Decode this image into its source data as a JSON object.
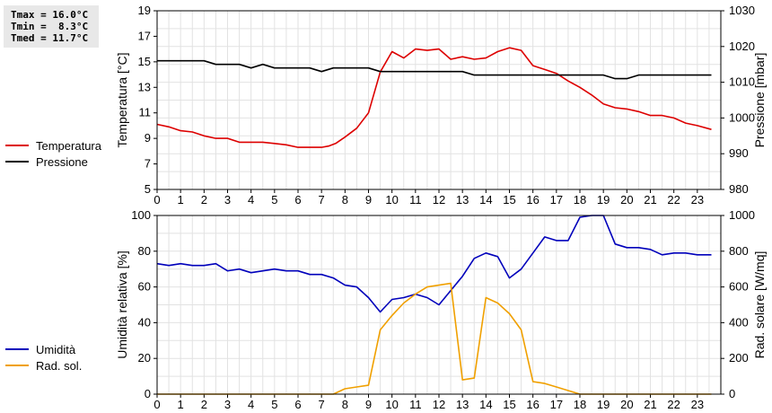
{
  "stats": {
    "tmax": "Tmax = 16.0°C",
    "tmin": "Tmin =  8.3°C",
    "tmed": "Tmed = 11.7°C"
  },
  "legend_top": [
    {
      "label": "Temperatura",
      "color": "#dd0000"
    },
    {
      "label": "Pressione",
      "color": "#000000"
    }
  ],
  "legend_bottom": [
    {
      "label": "Umidità",
      "color": "#0000bb"
    },
    {
      "label": "Rad. sol.",
      "color": "#f0a000"
    }
  ],
  "chart_data": [
    {
      "type": "line",
      "ylabel": "Temperatura [°C]",
      "y2label": "Pressione [mbar]",
      "ylim": [
        5,
        19
      ],
      "yticks": [
        "5",
        "7",
        "9",
        "11",
        "13",
        "15",
        "17",
        "19"
      ],
      "y2lim": [
        980,
        1030
      ],
      "y2ticks": [
        "980",
        "990",
        "1000",
        "1010",
        "1020",
        "1030"
      ],
      "xlim": [
        0,
        24
      ],
      "xticks": [
        "0",
        "1",
        "2",
        "3",
        "4",
        "5",
        "6",
        "7",
        "8",
        "9",
        "10",
        "11",
        "12",
        "13",
        "14",
        "15",
        "16",
        "17",
        "18",
        "19",
        "20",
        "21",
        "22",
        "23"
      ],
      "grid": true,
      "series": [
        {
          "name": "Temperatura",
          "axis": "left",
          "color": "#dd0000",
          "x": [
            0,
            0.5,
            1,
            1.5,
            2,
            2.5,
            3,
            3.5,
            4,
            4.5,
            5,
            5.5,
            6,
            6.5,
            7,
            7.3,
            7.6,
            8,
            8.5,
            9,
            9.5,
            10,
            10.5,
            11,
            11.5,
            12,
            12.5,
            13,
            13.5,
            14,
            14.5,
            15,
            15.5,
            16,
            16.5,
            17,
            17.5,
            18,
            18.5,
            19,
            19.5,
            20,
            20.5,
            21,
            21.5,
            22,
            22.5,
            23,
            23.6
          ],
          "y": [
            10.1,
            9.9,
            9.6,
            9.5,
            9.2,
            9.0,
            9.0,
            8.7,
            8.7,
            8.7,
            8.6,
            8.5,
            8.3,
            8.3,
            8.3,
            8.4,
            8.6,
            9.1,
            9.8,
            11.0,
            14.2,
            15.8,
            15.3,
            16.0,
            15.9,
            16.0,
            15.2,
            15.4,
            15.2,
            15.3,
            15.8,
            16.1,
            15.9,
            14.7,
            14.4,
            14.1,
            13.5,
            13.0,
            12.4,
            11.7,
            11.4,
            11.3,
            11.1,
            10.8,
            10.8,
            10.6,
            10.2,
            10.0,
            9.7
          ]
        },
        {
          "name": "Pressione",
          "axis": "right",
          "color": "#000000",
          "x": [
            0,
            0.5,
            1,
            1.5,
            2,
            2.5,
            3,
            3.5,
            4,
            4.5,
            5,
            5.5,
            6,
            6.5,
            7,
            7.5,
            8,
            8.5,
            9,
            9.5,
            10,
            11,
            12,
            13,
            13.5,
            14,
            15,
            16,
            17,
            18,
            19,
            19.5,
            20,
            20.5,
            21,
            22,
            23,
            23.6
          ],
          "y": [
            1016,
            1016,
            1016,
            1016,
            1016,
            1015,
            1015,
            1015,
            1014,
            1015,
            1014,
            1014,
            1014,
            1014,
            1013,
            1014,
            1014,
            1014,
            1014,
            1013,
            1013,
            1013,
            1013,
            1013,
            1012,
            1012,
            1012,
            1012,
            1012,
            1012,
            1012,
            1011,
            1011,
            1012,
            1012,
            1012,
            1012,
            1012
          ]
        }
      ]
    },
    {
      "type": "line",
      "ylabel": "Umidità relativa [%]",
      "y2label": "Rad. solare [W/mq]",
      "ylim": [
        0,
        100
      ],
      "yticks": [
        "0",
        "20",
        "40",
        "60",
        "80",
        "100"
      ],
      "y2lim": [
        0,
        1000
      ],
      "y2ticks": [
        "0",
        "200",
        "400",
        "600",
        "800",
        "1000"
      ],
      "xlim": [
        0,
        24
      ],
      "xticks": [
        "0",
        "1",
        "2",
        "3",
        "4",
        "5",
        "6",
        "7",
        "8",
        "9",
        "10",
        "11",
        "12",
        "13",
        "14",
        "15",
        "16",
        "17",
        "18",
        "19",
        "20",
        "21",
        "22",
        "23"
      ],
      "grid": true,
      "series": [
        {
          "name": "Umidità",
          "axis": "left",
          "color": "#0000bb",
          "x": [
            0,
            0.5,
            1,
            1.5,
            2,
            2.5,
            3,
            3.5,
            4,
            4.5,
            5,
            5.5,
            6,
            6.5,
            7,
            7.5,
            8,
            8.5,
            9,
            9.5,
            10,
            10.5,
            11,
            11.5,
            12,
            12.5,
            13,
            13.5,
            14,
            14.5,
            15,
            15.5,
            16,
            16.5,
            17,
            17.5,
            18,
            18.5,
            19,
            19.5,
            20,
            20.5,
            21,
            21.5,
            22,
            22.5,
            23,
            23.6
          ],
          "y": [
            73,
            72,
            73,
            72,
            72,
            73,
            69,
            70,
            68,
            69,
            70,
            69,
            69,
            67,
            67,
            65,
            61,
            60,
            54,
            46,
            53,
            54,
            56,
            54,
            50,
            58,
            66,
            76,
            79,
            77,
            65,
            70,
            79,
            88,
            86,
            86,
            99,
            100,
            100,
            84,
            82,
            82,
            81,
            78,
            79,
            79,
            78,
            78
          ]
        },
        {
          "name": "Rad. sol.",
          "axis": "right",
          "color": "#f0a000",
          "x": [
            0,
            1,
            2,
            3,
            4,
            5,
            6,
            7,
            7.5,
            8,
            8.5,
            9,
            9.5,
            10,
            10.5,
            11,
            11.5,
            12,
            12.5,
            13,
            13.5,
            14,
            14.5,
            15,
            15.5,
            16,
            16.5,
            17,
            17.5,
            18,
            18.5,
            19,
            20,
            21,
            22,
            23,
            23.6
          ],
          "y": [
            0,
            0,
            0,
            0,
            0,
            0,
            0,
            0,
            0,
            30,
            40,
            50,
            360,
            440,
            510,
            560,
            600,
            610,
            620,
            80,
            90,
            540,
            510,
            450,
            360,
            70,
            60,
            40,
            20,
            0,
            0,
            0,
            0,
            0,
            0,
            0,
            0
          ]
        }
      ]
    }
  ]
}
